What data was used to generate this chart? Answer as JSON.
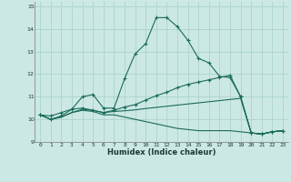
{
  "xlabel": "Humidex (Indice chaleur)",
  "background_color": "#cce8e4",
  "grid_color": "#aad4cc",
  "line_color": "#1a6b5a",
  "xlim": [
    -0.5,
    23.5
  ],
  "ylim": [
    9,
    15.2
  ],
  "yticks": [
    9,
    10,
    11,
    12,
    13,
    14,
    15
  ],
  "xticks": [
    0,
    1,
    2,
    3,
    4,
    5,
    6,
    7,
    8,
    9,
    10,
    11,
    12,
    13,
    14,
    15,
    16,
    17,
    18,
    19,
    20,
    21,
    22,
    23
  ],
  "series": [
    {
      "x": [
        0,
        1,
        2,
        3,
        4,
        5,
        6,
        7,
        8,
        9,
        10,
        11,
        12,
        13,
        14,
        15,
        16,
        17,
        18,
        19,
        20,
        21,
        22,
        23
      ],
      "y": [
        10.2,
        10.15,
        10.3,
        10.45,
        11.0,
        11.1,
        10.5,
        10.5,
        11.8,
        12.9,
        13.35,
        14.5,
        14.5,
        14.1,
        13.5,
        12.7,
        12.5,
        11.9,
        11.85,
        11.0,
        9.4,
        9.35,
        9.45,
        9.5
      ],
      "marker": true
    },
    {
      "x": [
        0,
        1,
        2,
        3,
        4,
        5,
        6,
        7,
        8,
        9,
        10,
        11,
        12,
        13,
        14,
        15,
        16,
        17,
        18,
        19,
        20,
        21,
        22,
        23
      ],
      "y": [
        10.2,
        10.0,
        10.15,
        10.45,
        10.5,
        10.4,
        10.3,
        10.4,
        10.55,
        10.65,
        10.85,
        11.05,
        11.2,
        11.4,
        11.55,
        11.65,
        11.75,
        11.85,
        11.95,
        11.0,
        9.4,
        9.35,
        9.45,
        9.5
      ],
      "marker": true
    },
    {
      "x": [
        0,
        1,
        2,
        3,
        4,
        5,
        6,
        7,
        8,
        9,
        10,
        11,
        12,
        13,
        14,
        15,
        16,
        17,
        18,
        19,
        20,
        21,
        22,
        23
      ],
      "y": [
        10.2,
        10.0,
        10.1,
        10.3,
        10.45,
        10.4,
        10.3,
        10.35,
        10.38,
        10.42,
        10.48,
        10.53,
        10.58,
        10.63,
        10.68,
        10.73,
        10.78,
        10.83,
        10.88,
        10.93,
        9.4,
        9.35,
        9.45,
        9.5
      ],
      "marker": false
    },
    {
      "x": [
        0,
        1,
        2,
        3,
        4,
        5,
        6,
        7,
        8,
        9,
        10,
        11,
        12,
        13,
        14,
        15,
        16,
        17,
        18,
        19,
        20,
        21,
        22,
        23
      ],
      "y": [
        10.2,
        10.0,
        10.1,
        10.3,
        10.4,
        10.35,
        10.2,
        10.2,
        10.1,
        10.0,
        9.9,
        9.8,
        9.7,
        9.6,
        9.55,
        9.5,
        9.5,
        9.5,
        9.5,
        9.45,
        9.4,
        9.35,
        9.45,
        9.5
      ],
      "marker": false
    }
  ]
}
